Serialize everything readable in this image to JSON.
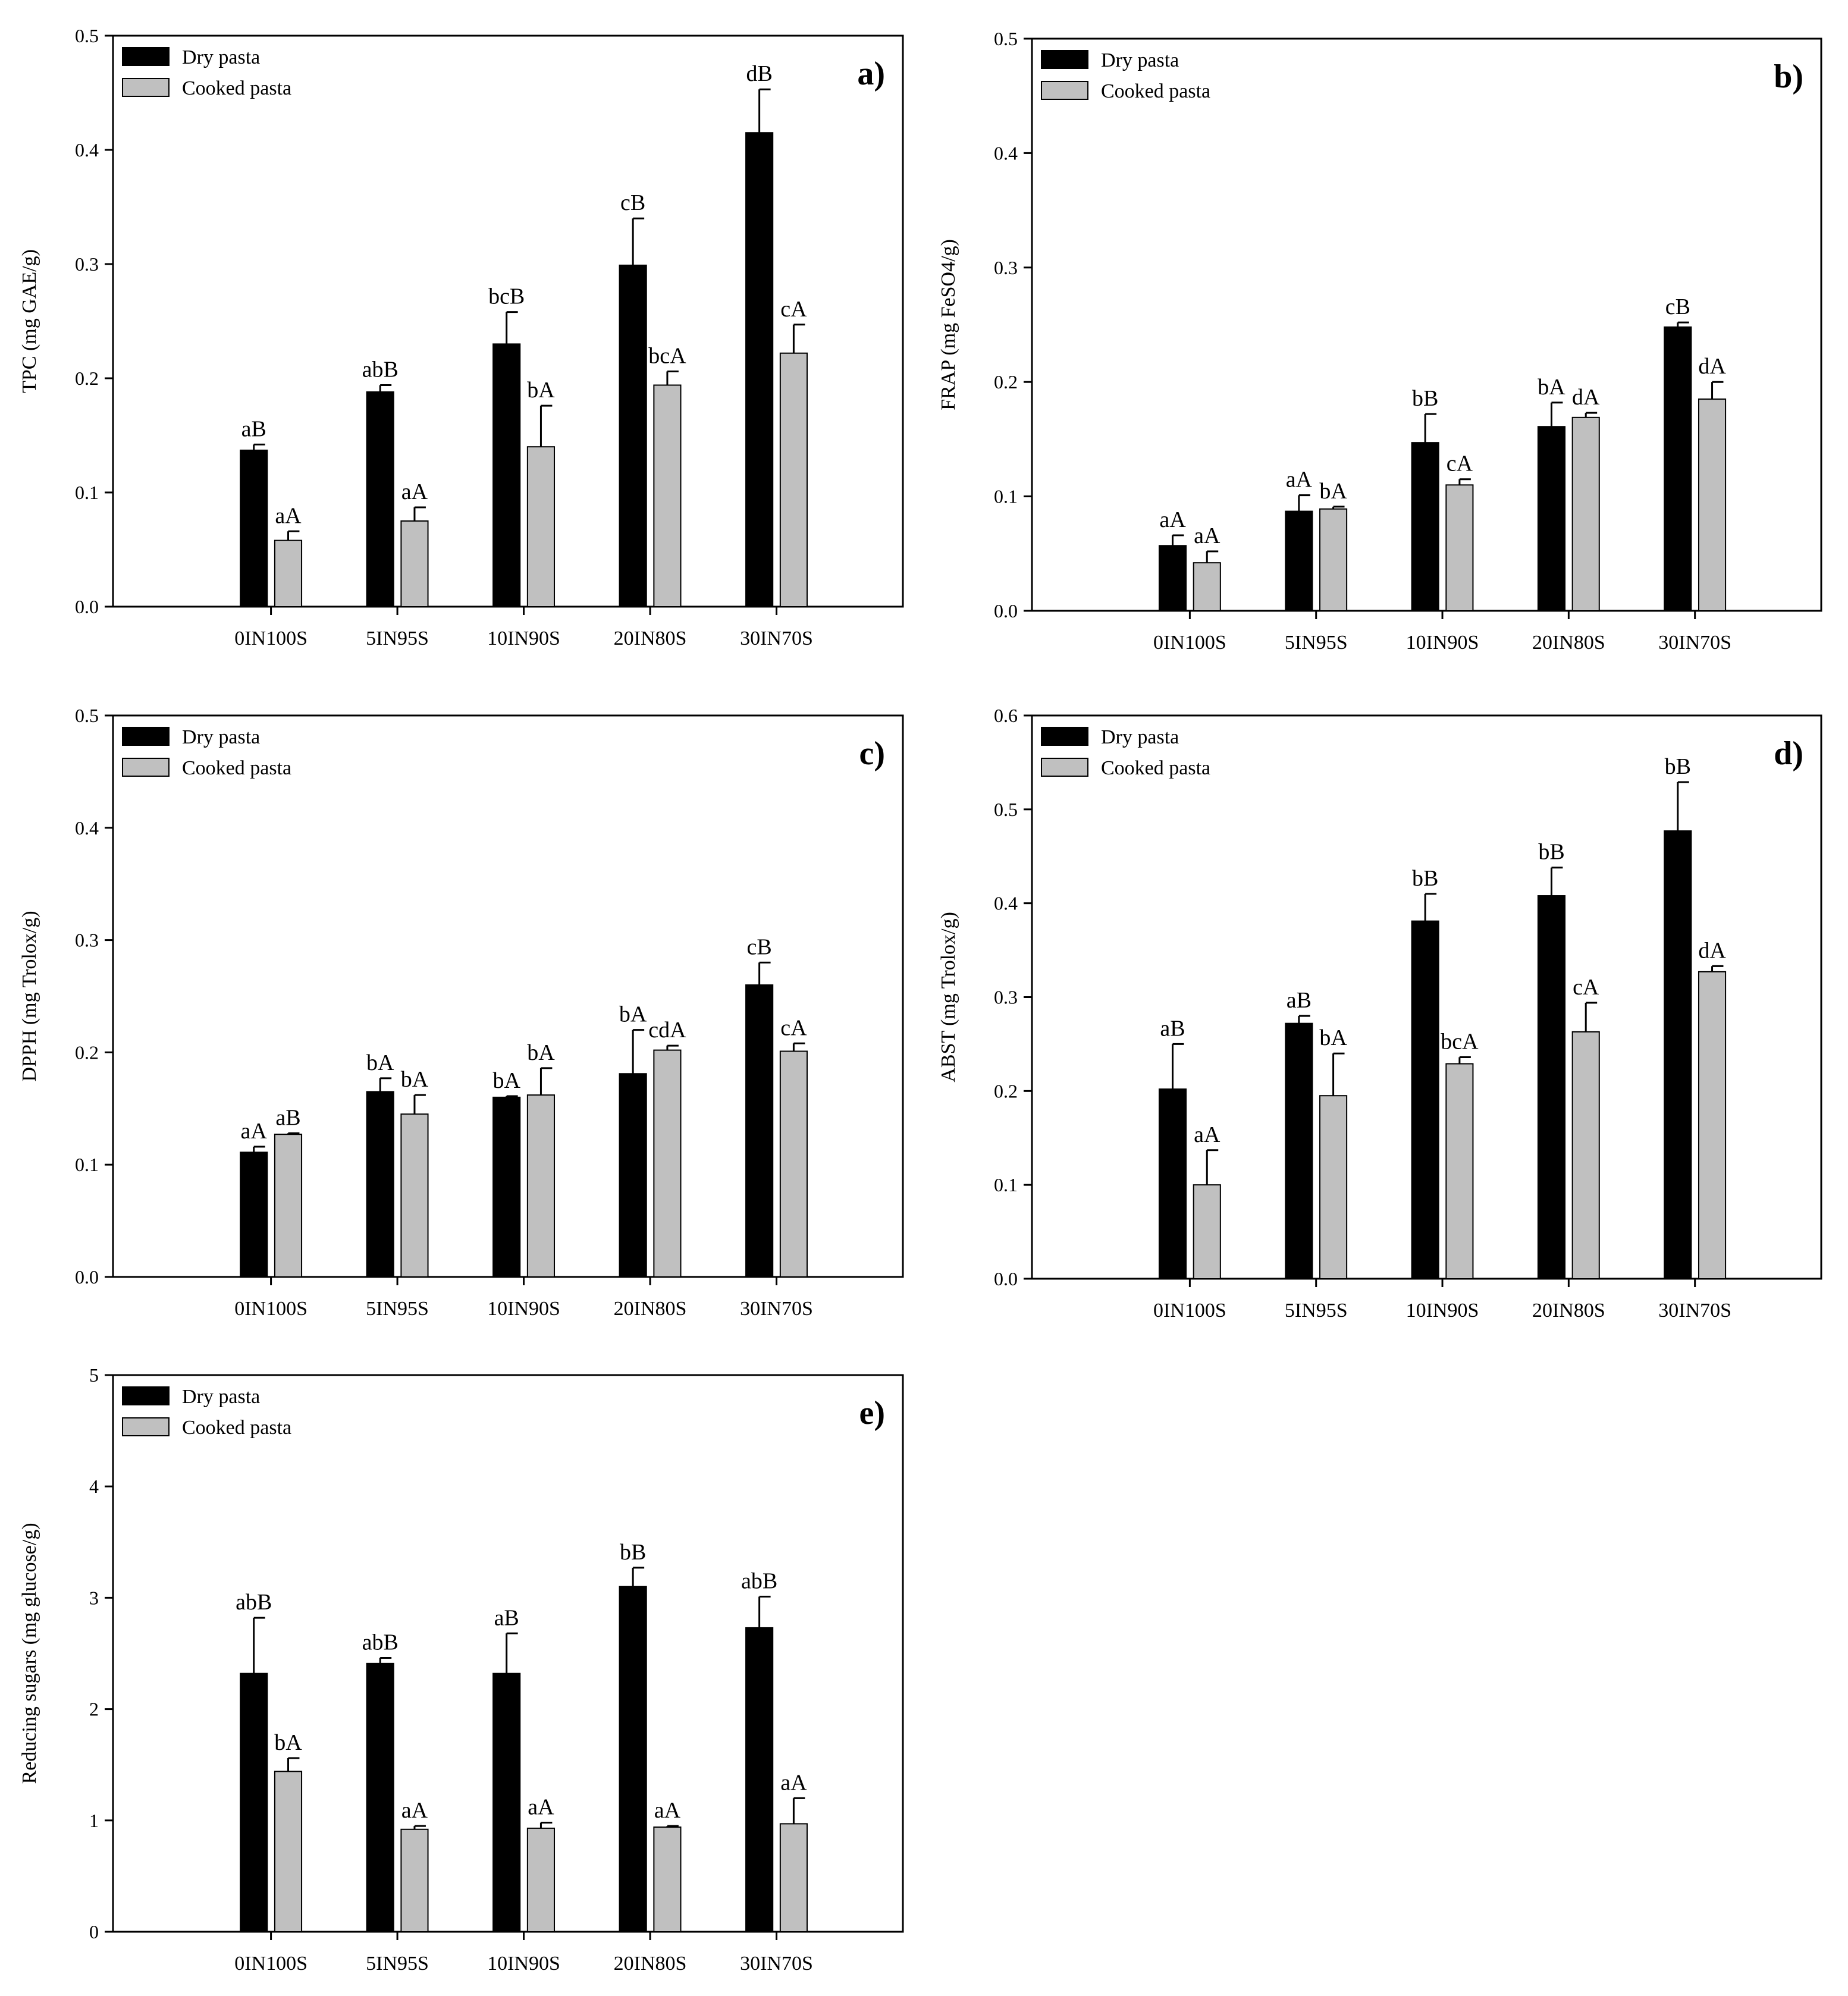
{
  "colors": {
    "dry": "#000000",
    "cooked": "#c0c0c0"
  },
  "chart_data": [
    {
      "type": "bar",
      "panel": "a)",
      "ylabel": "TPC (mg GAE/g)",
      "ylim": [
        0,
        0.5
      ],
      "yticks": [
        "0.0",
        "0.1",
        "0.2",
        "0.3",
        "0.4",
        "0.5"
      ],
      "categories": [
        "0IN100S",
        "5IN95S",
        "10IN90S",
        "20IN80S",
        "30IN70S"
      ],
      "legend": "top-left",
      "series": [
        {
          "name": "Dry pasta",
          "values": [
            0.137,
            0.188,
            0.23,
            0.299,
            0.415
          ],
          "errors": [
            0.005,
            0.006,
            0.028,
            0.041,
            0.038
          ],
          "labels": [
            "aB",
            "abB",
            "bcB",
            "cB",
            "dB"
          ]
        },
        {
          "name": "Cooked pasta",
          "values": [
            0.058,
            0.075,
            0.14,
            0.194,
            0.222
          ],
          "errors": [
            0.008,
            0.012,
            0.036,
            0.012,
            0.025
          ],
          "labels": [
            "aA",
            "aA",
            "bA",
            "bcA",
            "cA"
          ]
        }
      ]
    },
    {
      "type": "bar",
      "panel": "b)",
      "ylabel": "FRAP (mg FeSO4/g)",
      "ylim": [
        0,
        0.5
      ],
      "yticks": [
        "0.0",
        "0.1",
        "0.2",
        "0.3",
        "0.4",
        "0.5"
      ],
      "categories": [
        "0IN100S",
        "5IN95S",
        "10IN90S",
        "20IN80S",
        "30IN70S"
      ],
      "legend": "top-left",
      "series": [
        {
          "name": "Dry pasta",
          "values": [
            0.057,
            0.087,
            0.147,
            0.161,
            0.248
          ],
          "errors": [
            0.009,
            0.014,
            0.025,
            0.021,
            0.004
          ],
          "labels": [
            "aA",
            "aA",
            "bB",
            "bA",
            "cB"
          ]
        },
        {
          "name": "Cooked pasta",
          "values": [
            0.042,
            0.089,
            0.11,
            0.169,
            0.185
          ],
          "errors": [
            0.01,
            0.002,
            0.005,
            0.004,
            0.015
          ],
          "labels": [
            "aA",
            "bA",
            "cA",
            "dA",
            "dA"
          ]
        }
      ]
    },
    {
      "type": "bar",
      "panel": "c)",
      "ylabel": "DPPH (mg Trolox/g)",
      "ylim": [
        0,
        0.5
      ],
      "yticks": [
        "0.0",
        "0.1",
        "0.2",
        "0.3",
        "0.4",
        "0.5"
      ],
      "categories": [
        "0IN100S",
        "5IN95S",
        "10IN90S",
        "20IN80S",
        "30IN70S"
      ],
      "legend": "top-left",
      "series": [
        {
          "name": "Dry pasta",
          "values": [
            0.111,
            0.165,
            0.16,
            0.181,
            0.26
          ],
          "errors": [
            0.005,
            0.012,
            0.001,
            0.039,
            0.02
          ],
          "labels": [
            "aA",
            "bA",
            "bA",
            "bA",
            "cB"
          ]
        },
        {
          "name": "Cooked pasta",
          "values": [
            0.127,
            0.145,
            0.162,
            0.202,
            0.201
          ],
          "errors": [
            0.001,
            0.017,
            0.024,
            0.004,
            0.007
          ],
          "labels": [
            "aB",
            "bA",
            "bA",
            "cdA",
            "cA"
          ]
        }
      ]
    },
    {
      "type": "bar",
      "panel": "d)",
      "ylabel": "ABST (mg Trolox/g)",
      "ylim": [
        0,
        0.6
      ],
      "yticks": [
        "0.0",
        "0.1",
        "0.2",
        "0.3",
        "0.4",
        "0.5",
        "0.6"
      ],
      "categories": [
        "0IN100S",
        "5IN95S",
        "10IN90S",
        "20IN80S",
        "30IN70S"
      ],
      "legend": "top-left",
      "series": [
        {
          "name": "Dry pasta",
          "values": [
            0.202,
            0.272,
            0.381,
            0.408,
            0.477
          ],
          "errors": [
            0.048,
            0.008,
            0.029,
            0.03,
            0.052
          ],
          "labels": [
            "aB",
            "aB",
            "bB",
            "bB",
            "bB"
          ]
        },
        {
          "name": "Cooked pasta",
          "values": [
            0.1,
            0.195,
            0.229,
            0.263,
            0.327
          ],
          "errors": [
            0.037,
            0.045,
            0.007,
            0.031,
            0.006
          ],
          "labels": [
            "aA",
            "bA",
            "bcA",
            "cA",
            "dA"
          ]
        }
      ]
    },
    {
      "type": "bar",
      "panel": "e)",
      "ylabel": "Reducing sugars (mg glucose/g)",
      "ylim": [
        0,
        5
      ],
      "yticks": [
        "0",
        "1",
        "2",
        "3",
        "4",
        "5"
      ],
      "categories": [
        "0IN100S",
        "5IN95S",
        "10IN90S",
        "20IN80S",
        "30IN70S"
      ],
      "legend": "top-left",
      "series": [
        {
          "name": "Dry pasta",
          "values": [
            2.32,
            2.41,
            2.32,
            3.1,
            2.73
          ],
          "errors": [
            0.5,
            0.05,
            0.36,
            0.17,
            0.28
          ],
          "labels": [
            "abB",
            "abB",
            "aB",
            "bB",
            "abB"
          ]
        },
        {
          "name": "Cooked pasta",
          "values": [
            1.44,
            0.92,
            0.93,
            0.94,
            0.97
          ],
          "errors": [
            0.12,
            0.03,
            0.05,
            0.01,
            0.23
          ],
          "labels": [
            "bA",
            "aA",
            "aA",
            "aA",
            "aA"
          ]
        }
      ]
    }
  ]
}
